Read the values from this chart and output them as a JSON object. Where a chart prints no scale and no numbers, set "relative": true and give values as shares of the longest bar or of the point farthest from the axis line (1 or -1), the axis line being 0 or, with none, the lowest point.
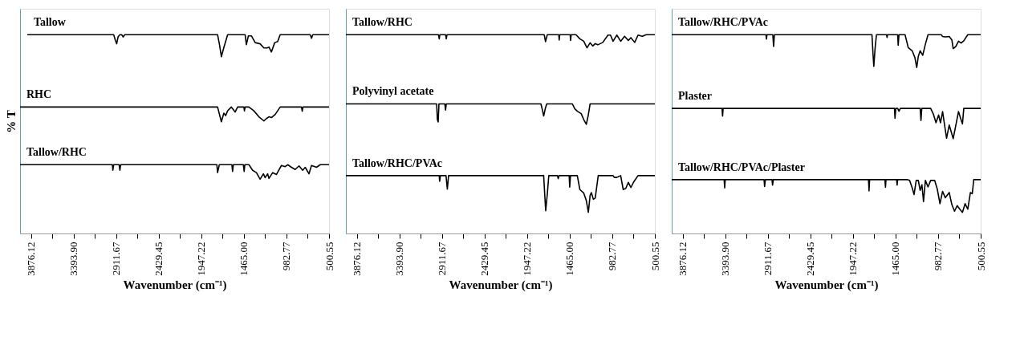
{
  "chart_data": [
    {
      "type": "line",
      "relative": true,
      "ylabel": "% T",
      "xlabel": "Wavenumber (cm⁻¹)",
      "xlim": [
        4000,
        500.55
      ],
      "xticks": [
        3876.12,
        {
          "value": 3634.01,
          "label": null
        },
        {
          "value": 3393.9,
          "label": "3393.90"
        },
        {
          "value": 3152.79,
          "label": null
        },
        2911.67,
        {
          "value": 2670.56,
          "label": null
        },
        2429.45,
        {
          "value": 2188.34,
          "label": null
        },
        1947.22,
        {
          "value": 1706.11,
          "label": null
        },
        {
          "value": 1465,
          "label": "1465.00"
        },
        {
          "value": 1223.89,
          "label": null
        },
        982.77,
        {
          "value": 741.66,
          "label": null
        },
        500.55
      ],
      "series": [
        {
          "name": "Tallow",
          "color": "#000000",
          "x": [
            3919,
            2940,
            2920,
            2906,
            2889,
            2869,
            2849,
            2832,
            2815,
            1763,
            1740,
            1720,
            1692,
            1649,
            1451,
            1437,
            1414,
            1380,
            1337,
            1281,
            1238,
            1201,
            1181,
            1153,
            1116,
            1082,
            1054,
            713,
            699,
            685,
            500.55
          ],
          "values": [
            1,
            1,
            0.972,
            0.954,
            0.99,
            1,
            1,
            0.988,
            1,
            1,
            0.947,
            0.889,
            0.935,
            1,
            1,
            0.95,
            0.994,
            0.994,
            0.96,
            0.954,
            0.933,
            0.933,
            0.938,
            0.913,
            0.96,
            0.966,
            1,
            1,
            0.982,
            1,
            1
          ]
        },
        {
          "name": "RHC",
          "color": "#000000",
          "x": [
            4000,
            1763,
            1720,
            1692,
            1672,
            1649,
            1607,
            1564,
            1536,
            1465,
            1459,
            1451,
            1408,
            1352,
            1295,
            1238,
            1210,
            1181,
            1153,
            1110,
            1054,
            813,
            804,
            796,
            500.55
          ],
          "values": [
            0.636,
            0.636,
            0.562,
            0.605,
            0.593,
            0.617,
            0.636,
            0.611,
            0.636,
            0.636,
            0.617,
            0.636,
            0.636,
            0.617,
            0.587,
            0.566,
            0.578,
            0.587,
            0.583,
            0.599,
            0.636,
            0.636,
            0.615,
            0.636,
            0.636
          ]
        },
        {
          "name": "Tallow/RHC",
          "color": "#000000",
          "x": [
            4000,
            2954,
            2949,
            2940,
            2878,
            2869,
            2861,
            1771,
            1763,
            1743,
            1601,
            1593,
            1584,
            1471,
            1462,
            1454,
            1408,
            1366,
            1323,
            1281,
            1244,
            1224,
            1196,
            1181,
            1139,
            1096,
            1040,
            997,
            969,
            926,
            884,
            841,
            799,
            770,
            728,
            699,
            642,
            600,
            500.55
          ],
          "values": [
            0.346,
            0.346,
            0.318,
            0.346,
            0.346,
            0.318,
            0.346,
            0.346,
            0.306,
            0.346,
            0.346,
            0.312,
            0.346,
            0.346,
            0.312,
            0.346,
            0.346,
            0.318,
            0.306,
            0.273,
            0.3,
            0.281,
            0.3,
            0.277,
            0.306,
            0.297,
            0.342,
            0.336,
            0.346,
            0.333,
            0.322,
            0.34,
            0.318,
            0.333,
            0.3,
            0.342,
            0.333,
            0.346,
            0.346
          ]
        }
      ]
    },
    {
      "type": "line",
      "relative": true,
      "xlabel": "Wavenumber (cm⁻¹)",
      "xlim": [
        4000,
        500.55
      ],
      "xticks": [
        3876.12,
        {
          "value": 3634.01,
          "label": null
        },
        {
          "value": 3393.9,
          "label": "3393.90"
        },
        {
          "value": 3152.79,
          "label": null
        },
        2911.67,
        {
          "value": 2670.56,
          "label": null
        },
        2429.45,
        {
          "value": 2188.34,
          "label": null
        },
        1947.22,
        {
          "value": 1706.11,
          "label": null
        },
        {
          "value": 1465,
          "label": "1465.00"
        },
        {
          "value": 1223.89,
          "label": null
        },
        982.77,
        {
          "value": 741.66,
          "label": null
        },
        500.55
      ],
      "series": [
        {
          "name": "Tallow/RHC",
          "color": "#000000",
          "x": [
            4000,
            2952,
            2943,
            2935,
            2871,
            2863,
            2854,
            1754,
            1739,
            1719,
            1589,
            1584,
            1578,
            1460,
            1455,
            1448,
            1394,
            1350,
            1306,
            1269,
            1234,
            1205,
            1176,
            1147,
            1090,
            1032,
            1003,
            974,
            931,
            888,
            844,
            801,
            772,
            729,
            691,
            642,
            599,
            500.55
          ],
          "values": [
            1,
            1,
            0.979,
            1,
            1,
            0.979,
            1,
            1,
            0.965,
            1,
            1,
            0.973,
            1,
            1,
            0.971,
            1,
            1,
            0.979,
            0.967,
            0.934,
            0.959,
            0.943,
            0.955,
            0.949,
            0.961,
            0.998,
            0.998,
            0.967,
            0.998,
            0.967,
            0.992,
            0.971,
            0.985,
            0.961,
            0.998,
            0.992,
            1,
            1
          ]
        },
        {
          "name": "Polyvinyl acetate",
          "color": "#000000",
          "x": [
            4000,
            2972,
            2964,
            2955,
            2946,
            2880,
            2871,
            2863,
            1791,
            1774,
            1760,
            1739,
            1725,
            1436,
            1407,
            1379,
            1335,
            1306,
            1277,
            1254,
            1234,
            500.55
          ],
          "values": [
            0.652,
            0.652,
            0.573,
            0.561,
            0.652,
            0.652,
            0.621,
            0.652,
            0.652,
            0.621,
            0.591,
            0.633,
            0.652,
            0.652,
            0.627,
            0.615,
            0.603,
            0.573,
            0.549,
            0.597,
            0.652,
            0.652
          ]
        },
        {
          "name": "Tallow/RHC/PVAc",
          "color": "#000000",
          "x": [
            4000,
            2943,
            2938,
            2929,
            2866,
            2851,
            2837,
            1760,
            1748,
            1737,
            1719,
            1702,
            1604,
            1595,
            1586,
            1471,
            1465,
            1456,
            1379,
            1350,
            1306,
            1277,
            1254,
            1234,
            1220,
            1197,
            1176,
            1142,
            974,
            960,
            931,
            888,
            859,
            830,
            801,
            772,
            743,
            691,
            500.55
          ],
          "values": [
            0.291,
            0.291,
            0.263,
            0.291,
            0.291,
            0.223,
            0.291,
            0.291,
            0.197,
            0.114,
            0.197,
            0.291,
            0.291,
            0.276,
            0.291,
            0.291,
            0.233,
            0.291,
            0.291,
            0.221,
            0.203,
            0.166,
            0.106,
            0.191,
            0.206,
            0.172,
            0.178,
            0.291,
            0.291,
            0.282,
            0.282,
            0.291,
            0.221,
            0.227,
            0.257,
            0.231,
            0.257,
            0.291,
            0.291
          ]
        }
      ]
    },
    {
      "type": "line",
      "relative": true,
      "xlabel": "Wavenumber (cm⁻¹)",
      "xlim": [
        4000,
        500.55
      ],
      "xticks": [
        3876.12,
        {
          "value": 3634.01,
          "label": null
        },
        {
          "value": 3393.9,
          "label": "3393.90"
        },
        {
          "value": 3152.79,
          "label": null
        },
        2911.67,
        {
          "value": 2670.56,
          "label": null
        },
        2429.45,
        {
          "value": 2188.34,
          "label": null
        },
        1947.22,
        {
          "value": 1706.11,
          "label": null
        },
        {
          "value": 1465,
          "label": "1465.00"
        },
        {
          "value": 1223.89,
          "label": null
        },
        982.77,
        {
          "value": 741.66,
          "label": null
        },
        500.55
      ],
      "series": [
        {
          "name": "Tallow/RHC/PVAc",
          "color": "#000000",
          "x": [
            4000,
            2933,
            2927,
            2921,
            2855,
            2846,
            2837,
            1732,
            1720,
            1711,
            1696,
            1681,
            1567,
            1561,
            1555,
            1441,
            1435,
            1426,
            1357,
            1321,
            1276,
            1246,
            1225,
            1207,
            1186,
            1157,
            1127,
            1097,
            947,
            932,
            902,
            857,
            827,
            812,
            782,
            752,
            722,
            692,
            647,
            500.55
          ],
          "values": [
            1,
            1,
            0.978,
            1,
            1,
            0.941,
            1,
            1,
            0.902,
            0.841,
            0.935,
            1,
            1,
            0.986,
            1,
            1,
            0.947,
            1,
            1,
            0.935,
            0.919,
            0.885,
            0.835,
            0.891,
            0.919,
            0.896,
            0.952,
            1,
            1,
            0.991,
            0.989,
            0.991,
            0.974,
            0.93,
            0.941,
            0.967,
            0.958,
            0.969,
            1,
            1
          ]
        },
        {
          "name": "Plaster",
          "color": "#000000",
          "x": [
            4000,
            3430,
            3424,
            3418,
            1477,
            1471,
            1462,
            1441,
            1426,
            1411,
            1186,
            1177,
            1168,
            1067,
            1037,
            1007,
            977,
            956,
            932,
            887,
            857,
            812,
            752,
            728,
            707,
            692,
            500.55
          ],
          "values": [
            0.629,
            0.629,
            0.59,
            0.629,
            0.629,
            0.579,
            0.629,
            0.629,
            0.615,
            0.629,
            0.629,
            0.568,
            0.629,
            0.629,
            0.601,
            0.557,
            0.596,
            0.557,
            0.613,
            0.479,
            0.546,
            0.477,
            0.613,
            0.579,
            0.551,
            0.629,
            0.629
          ]
        },
        {
          "name": "Tallow/RHC/PVAc/Plaster",
          "color": "#000000",
          "x": [
            4000,
            3406,
            3400,
            3394,
            2954,
            2948,
            2939,
            2864,
            2858,
            2849,
            1771,
            1765,
            1759,
            1585,
            1579,
            1573,
            1453,
            1447,
            1441,
            1336,
            1306,
            1276,
            1255,
            1231,
            1207,
            1186,
            1166,
            1148,
            1127,
            1097,
            1067,
            1022,
            992,
            962,
            932,
            902,
            857,
            827,
            797,
            767,
            737,
            707,
            677,
            647,
            617,
            596,
            579,
            500.55
          ],
          "values": [
            0.271,
            0.271,
            0.229,
            0.271,
            0.271,
            0.236,
            0.271,
            0.271,
            0.243,
            0.271,
            0.271,
            0.214,
            0.271,
            0.271,
            0.232,
            0.271,
            0.271,
            0.243,
            0.271,
            0.271,
            0.267,
            0.229,
            0.196,
            0.267,
            0.267,
            0.217,
            0.245,
            0.161,
            0.267,
            0.234,
            0.267,
            0.267,
            0.223,
            0.15,
            0.212,
            0.18,
            0.206,
            0.145,
            0.112,
            0.14,
            0.122,
            0.106,
            0.15,
            0.122,
            0.206,
            0.2,
            0.271,
            0.271
          ]
        }
      ]
    }
  ]
}
